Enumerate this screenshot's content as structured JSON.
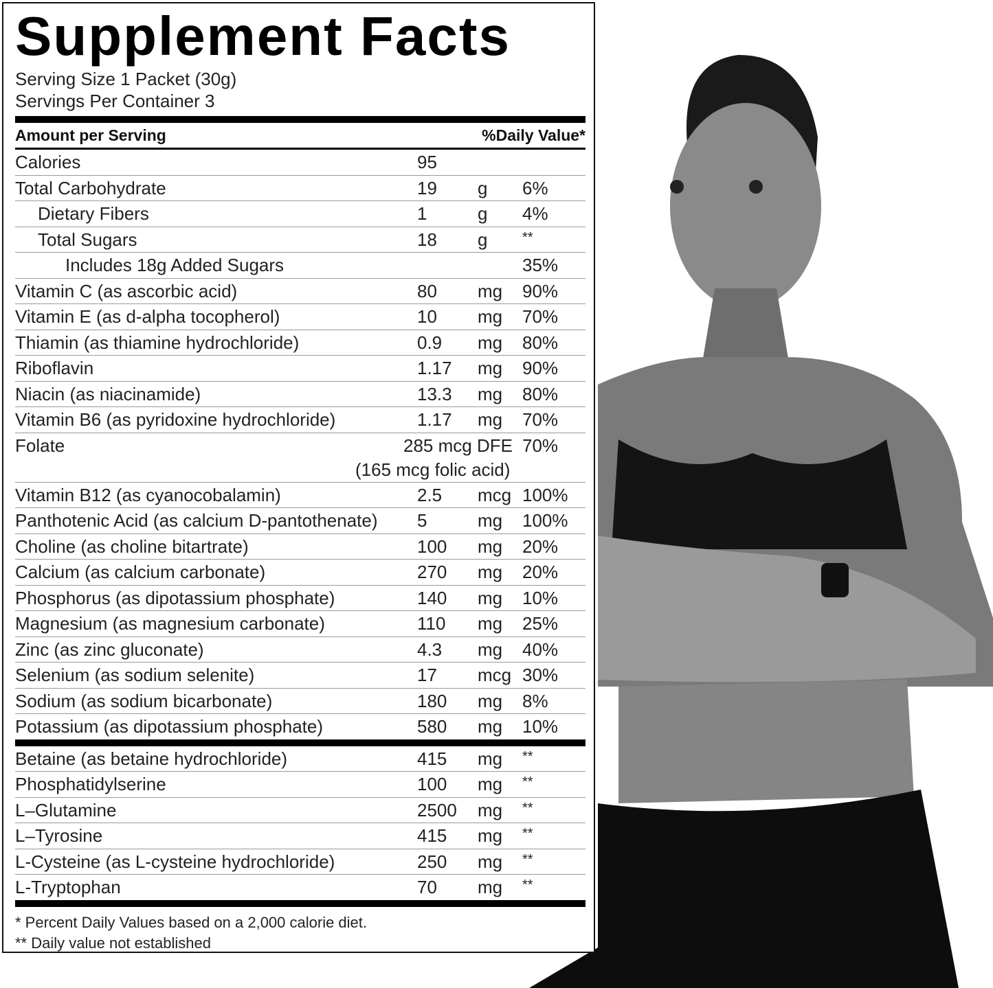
{
  "title": "Supplement Facts",
  "serving_size": "Serving Size 1 Packet (30g)",
  "servings_per_container": "Servings Per Container 3",
  "header": {
    "amount": "Amount per Serving",
    "dv": "%Daily Value*"
  },
  "rows": [
    {
      "name": "Calories",
      "amount": "95",
      "unit": "",
      "dv": "",
      "indent": 0
    },
    {
      "name": "Total Carbohydrate",
      "amount": "19",
      "unit": "g",
      "dv": "6%",
      "indent": 0
    },
    {
      "name": "Dietary Fibers",
      "amount": "1",
      "unit": "g",
      "dv": "4%",
      "indent": 1
    },
    {
      "name": "Total Sugars",
      "amount": "18",
      "unit": "g",
      "dv": "**",
      "indent": 1
    },
    {
      "name": "Includes 18g Added Sugars",
      "amount": "",
      "unit": "",
      "dv": "35%",
      "indent": 2
    },
    {
      "name": "Vitamin C (as ascorbic acid)",
      "amount": "80",
      "unit": "mg",
      "dv": "90%",
      "indent": 0
    },
    {
      "name": "Vitamin E (as d-alpha tocopherol)",
      "amount": "10",
      "unit": "mg",
      "dv": "70%",
      "indent": 0
    },
    {
      "name": "Thiamin (as thiamine hydrochloride)",
      "amount": "0.9",
      "unit": "mg",
      "dv": "80%",
      "indent": 0
    },
    {
      "name": "Riboflavin",
      "amount": "1.17",
      "unit": "mg",
      "dv": "90%",
      "indent": 0
    },
    {
      "name": "Niacin (as niacinamide)",
      "amount": "13.3",
      "unit": "mg",
      "dv": "80%",
      "indent": 0
    },
    {
      "name": "Vitamin B6 (as pyridoxine hydrochloride)",
      "amount": "1.17",
      "unit": "mg",
      "dv": "70%",
      "indent": 0
    },
    {
      "name": "Folate",
      "amount": "285 mcg DFE",
      "unit": "",
      "dv": "70%",
      "sub": "(165 mcg folic acid)",
      "indent": 0
    },
    {
      "name": "Vitamin B12 (as cyanocobalamin)",
      "amount": "2.5",
      "unit": "mcg",
      "dv": "100%",
      "indent": 0
    },
    {
      "name": "Panthotenic Acid (as calcium D-pantothenate)",
      "amount": "5",
      "unit": "mg",
      "dv": "100%",
      "indent": 0
    },
    {
      "name": "Choline (as choline bitartrate)",
      "amount": "100",
      "unit": "mg",
      "dv": "20%",
      "indent": 0
    },
    {
      "name": "Calcium (as calcium carbonate)",
      "amount": "270",
      "unit": "mg",
      "dv": "20%",
      "indent": 0
    },
    {
      "name": "Phosphorus (as dipotassium phosphate)",
      "amount": "140",
      "unit": "mg",
      "dv": "10%",
      "indent": 0
    },
    {
      "name": "Magnesium (as magnesium carbonate)",
      "amount": "110",
      "unit": "mg",
      "dv": "25%",
      "indent": 0
    },
    {
      "name": "Zinc (as zinc gluconate)",
      "amount": "4.3",
      "unit": "mg",
      "dv": "40%",
      "indent": 0
    },
    {
      "name": "Selenium (as sodium selenite)",
      "amount": "17",
      "unit": "mcg",
      "dv": "30%",
      "indent": 0
    },
    {
      "name": "Sodium (as sodium bicarbonate)",
      "amount": "180",
      "unit": "mg",
      "dv": "8%",
      "indent": 0
    },
    {
      "name": "Potassium (as dipotassium phosphate)",
      "amount": "580",
      "unit": "mg",
      "dv": "10%",
      "indent": 0
    }
  ],
  "other_rows": [
    {
      "name": "Betaine (as betaine hydrochloride)",
      "amount": "415",
      "unit": "mg",
      "dv": "**"
    },
    {
      "name": "Phosphatidylserine",
      "amount": "100",
      "unit": "mg",
      "dv": "**"
    },
    {
      "name": "L–Glutamine",
      "amount": "2500",
      "unit": "mg",
      "dv": "**"
    },
    {
      "name": "L–Tyrosine",
      "amount": "415",
      "unit": "mg",
      "dv": "**"
    },
    {
      "name": "L-Cysteine (as L-cysteine hydrochloride)",
      "amount": "250",
      "unit": "mg",
      "dv": "**"
    },
    {
      "name": "L-Tryptophan",
      "amount": "70",
      "unit": "mg",
      "dv": "**"
    }
  ],
  "footnotes": [
    "* Percent Daily Values based on a 2,000 calorie diet.",
    "** Daily value not established"
  ],
  "colors": {
    "ink": "#000000",
    "divider": "#999999",
    "background": "#ffffff"
  }
}
